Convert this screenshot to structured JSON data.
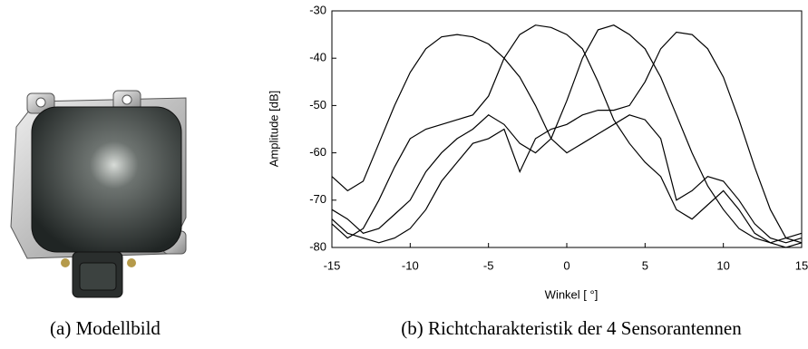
{
  "caption_a": "(a) Modellbild",
  "caption_b": "(b) Richtcharakteristik der 4 Sensorantennen",
  "chart_data": {
    "type": "line",
    "x_label": "Winkel [ °]",
    "y_label": "Amplitude [dB]",
    "x": [
      -15,
      -14,
      -13,
      -12,
      -11,
      -10,
      -9,
      -8,
      -7,
      -6,
      -5,
      -4,
      -3,
      -2,
      -1,
      0,
      1,
      2,
      3,
      4,
      5,
      6,
      7,
      8,
      9,
      10,
      11,
      12,
      13,
      14,
      15
    ],
    "series": [
      {
        "color": "#000000",
        "values": [
          -65,
          -68,
          -66,
          -58,
          -50,
          -43,
          -38,
          -35.5,
          -35,
          -35.5,
          -37,
          -40,
          -44,
          -50,
          -57,
          -60,
          -58,
          -56,
          -54,
          -52,
          -53,
          -57,
          -70,
          -68,
          -65,
          -66,
          -70,
          -75,
          -78,
          -79,
          -78
        ]
      },
      {
        "color": "#000000",
        "values": [
          -75,
          -78,
          -76,
          -70,
          -63,
          -57,
          -55,
          -54,
          -53,
          -52,
          -48,
          -40,
          -35,
          -33,
          -33.5,
          -35,
          -38,
          -45,
          -53,
          -58,
          -62,
          -65,
          -72,
          -74,
          -71,
          -68,
          -72,
          -77,
          -79,
          -80,
          -79
        ]
      },
      {
        "color": "#000000",
        "values": [
          -72,
          -74,
          -77,
          -76,
          -73,
          -70,
          -64,
          -60,
          -57,
          -55,
          -52,
          -54,
          -58,
          -60,
          -57,
          -49,
          -40,
          -34,
          -33,
          -35,
          -38,
          -44,
          -52,
          -60,
          -67,
          -72,
          -76,
          -78,
          -79,
          -78,
          -77
        ]
      },
      {
        "color": "#000000",
        "values": [
          -74,
          -77,
          -78,
          -79,
          -78,
          -76,
          -72,
          -66,
          -62,
          -58,
          -57,
          -55,
          -64,
          -57,
          -55,
          -54,
          -52,
          -51,
          -51,
          -50,
          -45,
          -38,
          -34.5,
          -35,
          -38,
          -44,
          -53,
          -63,
          -72,
          -78,
          -79
        ]
      }
    ],
    "xlim": [
      -15,
      15
    ],
    "ylim": [
      -80,
      -30
    ],
    "xticks": [
      -15,
      -10,
      -5,
      0,
      5,
      10,
      15
    ],
    "yticks": [
      -80,
      -70,
      -60,
      -50,
      -40,
      -30
    ],
    "grid": false
  }
}
